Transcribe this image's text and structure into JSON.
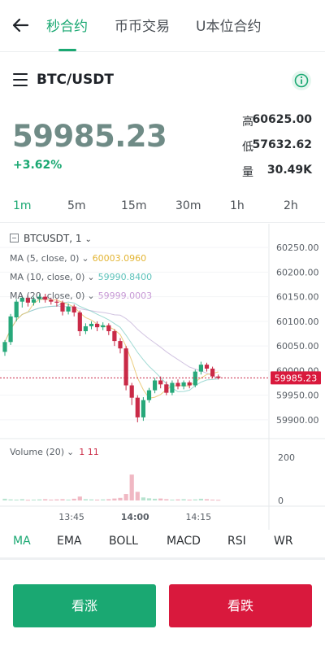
{
  "tabs": [
    {
      "label": "秒合约",
      "active": true
    },
    {
      "label": "币币交易",
      "active": false
    },
    {
      "label": "U本位合约",
      "active": false
    }
  ],
  "pair": "BTC/USDT",
  "price": "59985.23",
  "change": "+3.62%",
  "stats": [
    {
      "label": "高",
      "value": "60625.00"
    },
    {
      "label": "低",
      "value": "57632.62"
    },
    {
      "label": "量",
      "value": "30.49K"
    }
  ],
  "timeframes": [
    "1m",
    "5m",
    "15m",
    "30m",
    "1h",
    "2h"
  ],
  "active_timeframe": "1m",
  "chart": {
    "symbol": "BTCUSDT, 1",
    "ma": [
      {
        "label": "MA (5, close, 0)",
        "value": "60003.0960",
        "color": "#e3b534"
      },
      {
        "label": "MA (10, close, 0)",
        "value": "59990.8400",
        "color": "#5fc3bb"
      },
      {
        "label": "MA (20, close, 0)",
        "value": "59999.0003",
        "color": "#c89ad6"
      }
    ],
    "volume_label": "Volume (20)",
    "volume_value": "1 11",
    "last_price_label": "59985.23"
  },
  "chart_data": {
    "type": "candlestick",
    "price_ticks": [
      "60250.00",
      "60200.00",
      "60150.00",
      "60100.00",
      "60050.00",
      "60000.00",
      "59950.00",
      "59900.00"
    ],
    "price_range": [
      59885,
      60270
    ],
    "volume_ticks": [
      "200",
      "0"
    ],
    "volume_range": [
      0,
      200
    ],
    "time_ticks": [
      "13:45",
      "14:00",
      "14:15"
    ],
    "last_price": 59985.23,
    "candles": [
      [
        60038,
        60058,
        60030,
        60062
      ],
      [
        60058,
        60110,
        60052,
        60115
      ],
      [
        60108,
        60140,
        60100,
        60145
      ],
      [
        60140,
        60148,
        60128,
        60152
      ],
      [
        60148,
        60138,
        60130,
        60152
      ],
      [
        60138,
        60145,
        60132,
        60150
      ],
      [
        60145,
        60150,
        60138,
        60155
      ],
      [
        60150,
        60144,
        60138,
        60156
      ],
      [
        60144,
        60140,
        60134,
        60148
      ],
      [
        60140,
        60138,
        60130,
        60145
      ],
      [
        60138,
        60120,
        60112,
        60142
      ],
      [
        60120,
        60130,
        60114,
        60136
      ],
      [
        60130,
        60118,
        60110,
        60134
      ],
      [
        60118,
        60080,
        60070,
        60122
      ],
      [
        60080,
        60090,
        60074,
        60096
      ],
      [
        60090,
        60095,
        60084,
        60100
      ],
      [
        60095,
        60088,
        60080,
        60100
      ],
      [
        60088,
        60092,
        60082,
        60098
      ],
      [
        60092,
        60080,
        60072,
        60096
      ],
      [
        60080,
        60060,
        60050,
        60084
      ],
      [
        60060,
        60045,
        60035,
        60066
      ],
      [
        60045,
        59970,
        59960,
        60050
      ],
      [
        59970,
        59945,
        59930,
        59975
      ],
      [
        59945,
        59905,
        59895,
        59950
      ],
      [
        59905,
        59940,
        59898,
        59946
      ],
      [
        59940,
        59960,
        59935,
        59965
      ],
      [
        59960,
        59980,
        59954,
        59985
      ],
      [
        59980,
        59972,
        59964,
        59988
      ],
      [
        59972,
        59955,
        59950,
        59978
      ],
      [
        59955,
        59975,
        59950,
        59980
      ],
      [
        59975,
        59968,
        59962,
        59982
      ],
      [
        59968,
        59976,
        59962,
        59980
      ],
      [
        59976,
        59970,
        59964,
        59980
      ],
      [
        59970,
        59998,
        59966,
        60002
      ],
      [
        59998,
        60012,
        59992,
        60018
      ],
      [
        60012,
        60004,
        59998,
        60016
      ],
      [
        60004,
        59988,
        59984,
        60008
      ],
      [
        59988,
        59985,
        59982,
        59992
      ]
    ],
    "volumes": [
      8,
      5,
      4,
      6,
      3,
      4,
      5,
      6,
      4,
      5,
      6,
      4,
      8,
      18,
      6,
      5,
      4,
      5,
      6,
      9,
      12,
      30,
      120,
      40,
      14,
      10,
      8,
      9,
      6,
      4,
      5,
      6,
      4,
      5,
      8,
      6,
      4,
      3
    ]
  },
  "indicators": [
    "MA",
    "EMA",
    "BOLL",
    "MACD",
    "RSI",
    "WR"
  ],
  "active_indicator": "MA",
  "buttons": {
    "buy": "看涨",
    "sell": "看跌"
  },
  "colors": {
    "up": "#1aa872",
    "down": "#d9193d",
    "candle_up": "#27a87a",
    "candle_down": "#c92a47"
  }
}
